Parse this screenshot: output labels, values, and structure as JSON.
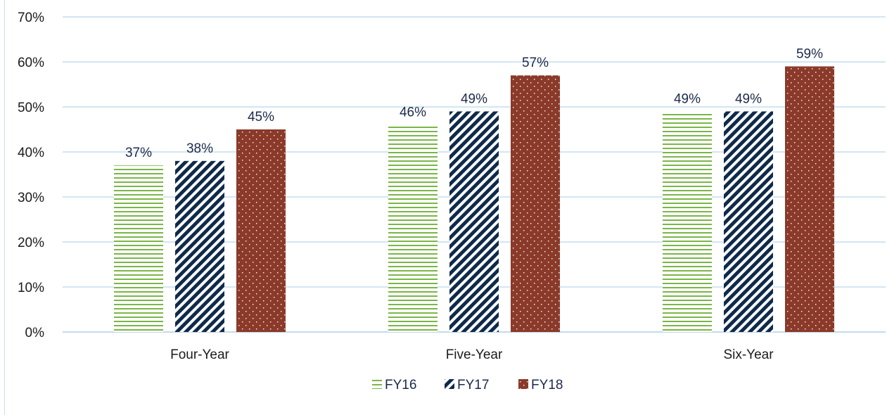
{
  "chart_data": {
    "type": "bar",
    "title": "",
    "xlabel": "",
    "ylabel": "",
    "categories": [
      "Four-Year",
      "Five-Year",
      "Six-Year"
    ],
    "series": [
      {
        "name": "FY16",
        "values": [
          37,
          46,
          49
        ],
        "labels": [
          "37%",
          "46%",
          "49%"
        ],
        "color": "#7ab648",
        "pattern": "horizontal-lines"
      },
      {
        "name": "FY17",
        "values": [
          38,
          49,
          49
        ],
        "labels": [
          "38%",
          "49%",
          "49%"
        ],
        "color": "#0f2a4a",
        "pattern": "diagonal-stripes"
      },
      {
        "name": "FY18",
        "values": [
          45,
          57,
          59
        ],
        "labels": [
          "45%",
          "57%",
          "59%"
        ],
        "color": "#8b3a2a",
        "pattern": "dots"
      }
    ],
    "ylim": [
      0,
      70
    ],
    "yticks": [
      "0%",
      "10%",
      "20%",
      "30%",
      "40%",
      "50%",
      "60%",
      "70%"
    ],
    "grid": true,
    "legend": "bottom-center"
  }
}
